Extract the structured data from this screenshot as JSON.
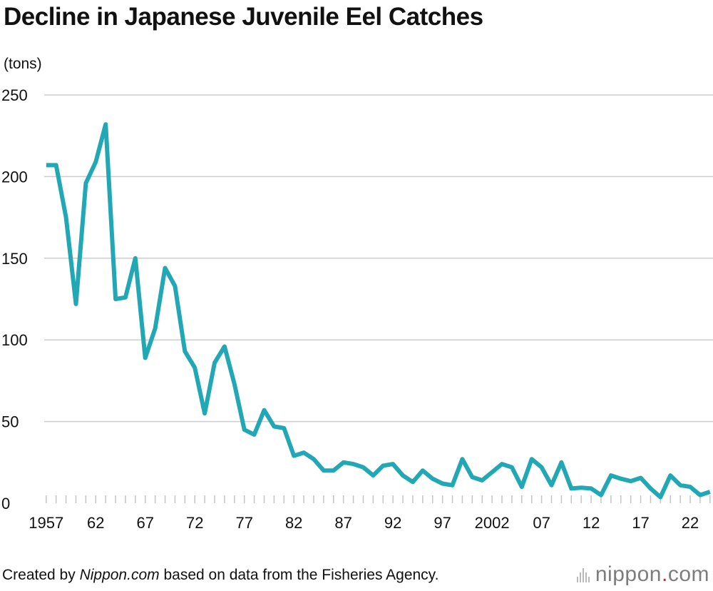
{
  "chart_data": {
    "type": "line",
    "title": "Decline in Japanese Juvenile Eel Catches",
    "ylabel": "(tons)",
    "xlabel": "",
    "ylim": [
      0,
      250
    ],
    "yticks": [
      0,
      50,
      100,
      150,
      200,
      250
    ],
    "xlim": [
      1956.8,
      2024.3
    ],
    "xtick_years": [
      1957,
      1962,
      1967,
      1972,
      1977,
      1982,
      1987,
      1992,
      1997,
      2002,
      2007,
      2012,
      2017,
      2022
    ],
    "xtick_labels": [
      "1957",
      "62",
      "67",
      "72",
      "77",
      "82",
      "87",
      "92",
      "97",
      "2002",
      "07",
      "12",
      "17",
      "22"
    ],
    "grid": true,
    "line_color": "#22a7b5",
    "series": [
      {
        "name": "Juvenile eel catch",
        "x": [
          1957,
          1958,
          1959,
          1960,
          1961,
          1962,
          1963,
          1964,
          1965,
          1966,
          1967,
          1968,
          1969,
          1970,
          1971,
          1972,
          1973,
          1974,
          1975,
          1976,
          1977,
          1978,
          1979,
          1980,
          1981,
          1982,
          1983,
          1984,
          1985,
          1986,
          1987,
          1988,
          1989,
          1990,
          1991,
          1992,
          1993,
          1994,
          1995,
          1996,
          1997,
          1998,
          1999,
          2000,
          2001,
          2002,
          2003,
          2004,
          2005,
          2006,
          2007,
          2008,
          2009,
          2010,
          2011,
          2012,
          2013,
          2014,
          2015,
          2016,
          2017,
          2018,
          2019,
          2020,
          2021,
          2022,
          2023,
          2024
        ],
        "values": [
          207,
          207,
          175,
          122,
          196,
          209,
          232,
          125,
          126,
          150,
          89,
          107,
          144,
          133,
          93,
          83,
          55,
          86,
          96,
          73,
          45,
          42,
          57,
          47,
          46,
          29,
          31,
          27,
          20,
          20,
          25,
          24,
          22,
          17,
          23,
          24,
          17,
          13,
          20,
          15,
          12,
          11,
          27,
          16,
          14,
          19,
          24,
          22,
          10,
          27,
          22,
          11,
          25,
          9,
          9.5,
          9,
          5,
          17,
          15,
          13.5,
          15.5,
          9,
          3.7,
          17,
          11,
          10,
          5,
          7
        ]
      }
    ]
  },
  "footer": {
    "prefix": "Created by ",
    "source_name": "Nippon.com",
    "suffix": " based on data from the Fisheries Agency."
  },
  "logo": {
    "name": "nippon",
    "dot": ".",
    "tld": "com"
  }
}
